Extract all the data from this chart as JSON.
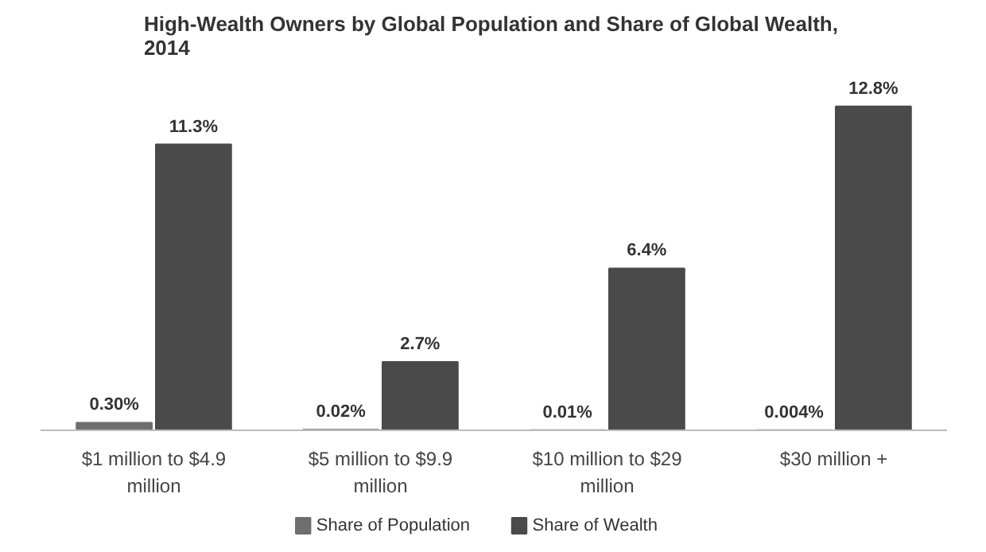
{
  "chart_data": {
    "type": "bar",
    "title": "High-Wealth Owners by Global Population  and Share of Global Wealth, 2014",
    "categories": [
      "$1 million to $4.9 million",
      "$5 million to $9.9 million",
      "$10 million to $29 million",
      "$30 million +"
    ],
    "series": [
      {
        "name": "Share of Population",
        "color": "#6e6e6e",
        "values": [
          0.3,
          0.02,
          0.01,
          0.004
        ],
        "value_labels": [
          "0.30%",
          "0.02%",
          "0.01%",
          "0.004%"
        ]
      },
      {
        "name": "Share of Wealth",
        "color": "#4a4a4a",
        "values": [
          11.3,
          2.7,
          6.4,
          12.8
        ],
        "value_labels": [
          "11.3%",
          "2.7%",
          "6.4%",
          "12.8%"
        ]
      }
    ],
    "legend": "bottom"
  }
}
